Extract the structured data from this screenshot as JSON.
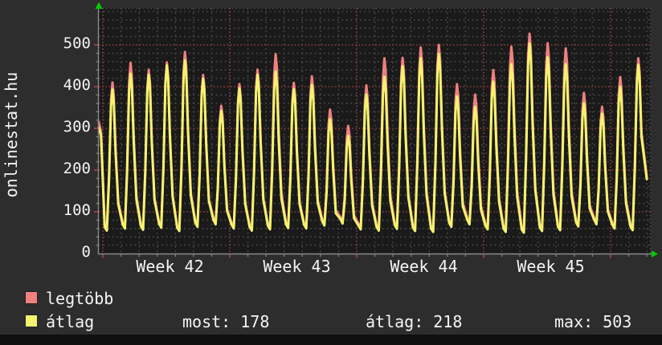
{
  "title": "onlinestat.hu",
  "chart_data": {
    "type": "line",
    "title": "onlinestat.hu",
    "x_axis": {
      "labels": [
        "Week 42",
        "Week 43",
        "Week 44",
        "Week 45"
      ],
      "week_line_positions_days": [
        0,
        7,
        14,
        21,
        28
      ],
      "range_days": [
        -0.22,
        30.2
      ]
    },
    "y_axis": {
      "min": 0,
      "max_visible": 588,
      "ticks": [
        0,
        100,
        200,
        300,
        400,
        500
      ],
      "minor_step": 20
    },
    "grid": {
      "on": true,
      "major_color": "#8f3f3f",
      "minor_color": "#4c4c4c",
      "plot_background": "#1a1a1a",
      "outer_background": "#2d2d2d"
    },
    "series": [
      {
        "name": "legtöbb",
        "color": "#f08080",
        "role": "daily-max-visitors"
      },
      {
        "name": "átlag",
        "color": "#f3f36e",
        "role": "daily-avg-visitors"
      }
    ],
    "days": [
      {
        "max": 410,
        "avg": 393,
        "low": 55
      },
      {
        "max": 457,
        "avg": 431,
        "low": 60
      },
      {
        "max": 441,
        "avg": 428,
        "low": 57
      },
      {
        "max": 458,
        "avg": 451,
        "low": 62
      },
      {
        "max": 483,
        "avg": 463,
        "low": 54
      },
      {
        "max": 428,
        "avg": 419,
        "low": 64
      },
      {
        "max": 354,
        "avg": 342,
        "low": 70
      },
      {
        "max": 406,
        "avg": 396,
        "low": 60
      },
      {
        "max": 441,
        "avg": 428,
        "low": 55
      },
      {
        "max": 478,
        "avg": 437,
        "low": 58
      },
      {
        "max": 409,
        "avg": 394,
        "low": 61
      },
      {
        "max": 425,
        "avg": 404,
        "low": 60
      },
      {
        "max": 345,
        "avg": 322,
        "low": 67
      },
      {
        "max": 306,
        "avg": 282,
        "low": 72
      },
      {
        "max": 403,
        "avg": 381,
        "low": 58
      },
      {
        "max": 468,
        "avg": 424,
        "low": 55
      },
      {
        "max": 469,
        "avg": 449,
        "low": 59
      },
      {
        "max": 494,
        "avg": 468,
        "low": 54
      },
      {
        "max": 500,
        "avg": 478,
        "low": 52
      },
      {
        "max": 406,
        "avg": 377,
        "low": 64
      },
      {
        "max": 381,
        "avg": 352,
        "low": 70
      },
      {
        "max": 440,
        "avg": 412,
        "low": 58
      },
      {
        "max": 496,
        "avg": 454,
        "low": 52
      },
      {
        "max": 527,
        "avg": 503,
        "low": 50
      },
      {
        "max": 504,
        "avg": 470,
        "low": 54
      },
      {
        "max": 492,
        "avg": 454,
        "low": 56
      },
      {
        "max": 385,
        "avg": 360,
        "low": 65
      },
      {
        "max": 352,
        "avg": 335,
        "low": 70
      },
      {
        "max": 423,
        "avg": 400,
        "low": 60
      },
      {
        "max": 468,
        "avg": 452,
        "low": 56
      }
    ],
    "line_start": [
      {
        "t": -0.22,
        "max": 315,
        "avg": 302
      },
      {
        "t": -0.1,
        "max": 292,
        "avg": 283
      }
    ],
    "line_end": {
      "t": 30.0,
      "max": 184,
      "avg": 178
    },
    "daily_shape": [
      {
        "f": 0.1,
        "ref": "low",
        "m": 1.15
      },
      {
        "f": 0.22,
        "ref": "low",
        "m": 1.0
      },
      {
        "f": 0.34,
        "ref": "peak",
        "m": 0.45
      },
      {
        "f": 0.45,
        "ref": "peak",
        "m": 0.9
      },
      {
        "f": 0.53,
        "ref": "peak",
        "m": 1.0
      },
      {
        "f": 0.6,
        "ref": "peak",
        "m": 0.93
      },
      {
        "f": 0.7,
        "ref": "peak",
        "m": 0.62
      },
      {
        "f": 0.85,
        "ref": "peak",
        "m": 0.3
      }
    ],
    "legend": [
      {
        "swatch_color": "#f08080",
        "label": "legtöbb"
      },
      {
        "swatch_color": "#f3f36e",
        "label": "átlag"
      }
    ],
    "stats": [
      {
        "label": "most:",
        "value": "178"
      },
      {
        "label": "átlag:",
        "value": "218"
      },
      {
        "label": "max:",
        "value": "503"
      }
    ],
    "axis_color": "#8a8a8a",
    "arrow_color": "#00cc00"
  }
}
